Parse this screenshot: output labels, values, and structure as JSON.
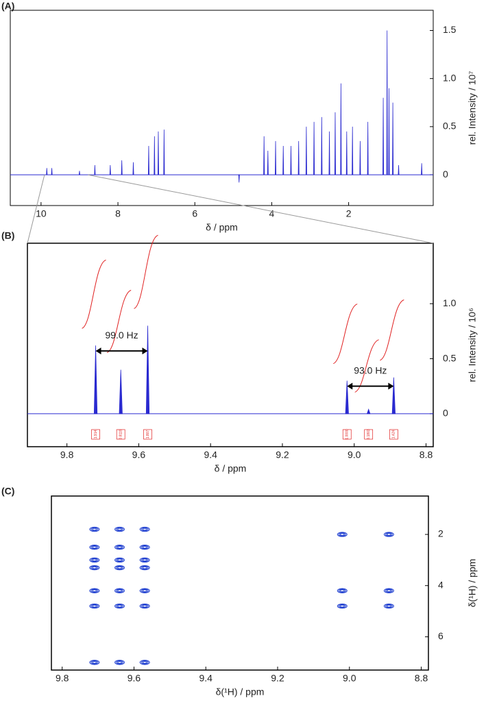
{
  "chart_data": [
    {
      "type": "stem",
      "panel": "(A)",
      "xlabel": "δ / ppm",
      "ylabel": "rel. Intensity / 10⁷",
      "color": "#2a2ad0",
      "x": [
        9.85,
        9.72,
        9.0,
        8.6,
        8.2,
        7.9,
        7.6,
        7.2,
        7.05,
        6.95,
        6.8,
        4.85,
        4.2,
        4.1,
        3.9,
        3.7,
        3.5,
        3.3,
        3.1,
        2.9,
        2.7,
        2.5,
        2.35,
        2.2,
        2.05,
        1.9,
        1.7,
        1.5,
        1.1,
        1.0,
        0.95,
        0.85,
        0.7,
        0.1
      ],
      "values": [
        0.07,
        0.07,
        0.04,
        0.1,
        0.1,
        0.15,
        0.13,
        0.3,
        0.4,
        0.45,
        0.47,
        -0.08,
        0.4,
        0.25,
        0.35,
        0.3,
        0.3,
        0.35,
        0.5,
        0.55,
        0.6,
        0.45,
        0.65,
        0.95,
        0.45,
        0.5,
        0.35,
        0.55,
        0.8,
        1.5,
        0.9,
        0.75,
        0.1,
        0.12
      ],
      "xlim": [
        10.8,
        -0.2
      ],
      "xticks": [
        10,
        8,
        6,
        4,
        2
      ],
      "ylim": [
        -0.32,
        1.71
      ],
      "yticks": [
        0,
        0.5,
        {
          "value": 1,
          "label": "1.0"
        },
        1.5
      ]
    },
    {
      "type": "stem",
      "panel": "(B)",
      "xlabel": "δ / ppm",
      "ylabel": "rel. Intensity / 10⁶",
      "color": "#2a2ad0",
      "integral_color": "#e02020",
      "x": [
        9.72,
        9.65,
        9.575,
        9.02,
        8.96,
        8.89
      ],
      "values": [
        0.62,
        0.4,
        0.8,
        0.3,
        0.04,
        0.33
      ],
      "integral_labels": [
        "1.914",
        "0.8119",
        "1.807",
        "1.0000",
        "0.1803",
        "1.424"
      ],
      "annotations": [
        "99.0 Hz",
        "93.0 Hz"
      ],
      "xlim": [
        9.91,
        8.78
      ],
      "xticks": [
        9.8,
        9.6,
        9.4,
        9.2,
        {
          "value": 9,
          "label": "9.0"
        },
        8.8
      ],
      "ylim": [
        -0.3,
        1.55
      ],
      "yticks": [
        0,
        0.5,
        {
          "value": 1,
          "label": "1.0"
        }
      ]
    },
    {
      "type": "scatter",
      "panel": "(C)",
      "xlabel": "δ(¹H) / ppm",
      "ylabel": "δ(¹H) / ppm",
      "color": "#1f3fd0",
      "x": [
        9.71,
        9.71,
        9.71,
        9.71,
        9.71,
        9.71,
        9.71,
        9.64,
        9.64,
        9.64,
        9.64,
        9.64,
        9.64,
        9.64,
        9.57,
        9.57,
        9.57,
        9.57,
        9.57,
        9.57,
        9.57,
        9.02,
        9.02,
        9.02,
        8.89,
        8.89,
        8.89
      ],
      "y": [
        1.8,
        2.5,
        3.0,
        3.3,
        4.2,
        4.8,
        7.0,
        1.8,
        2.5,
        3.0,
        3.3,
        4.2,
        4.8,
        7.0,
        1.8,
        2.5,
        3.0,
        3.3,
        4.2,
        4.8,
        7.0,
        2.0,
        4.2,
        4.8,
        2.0,
        4.2,
        4.8
      ],
      "xlim": [
        9.83,
        8.78
      ],
      "xticks": [
        9.8,
        9.6,
        9.4,
        9.2,
        {
          "value": 9,
          "label": "9.0"
        },
        8.8
      ],
      "ylim": [
        7.3,
        0.5
      ],
      "yticks": [
        2,
        4,
        6
      ]
    }
  ]
}
